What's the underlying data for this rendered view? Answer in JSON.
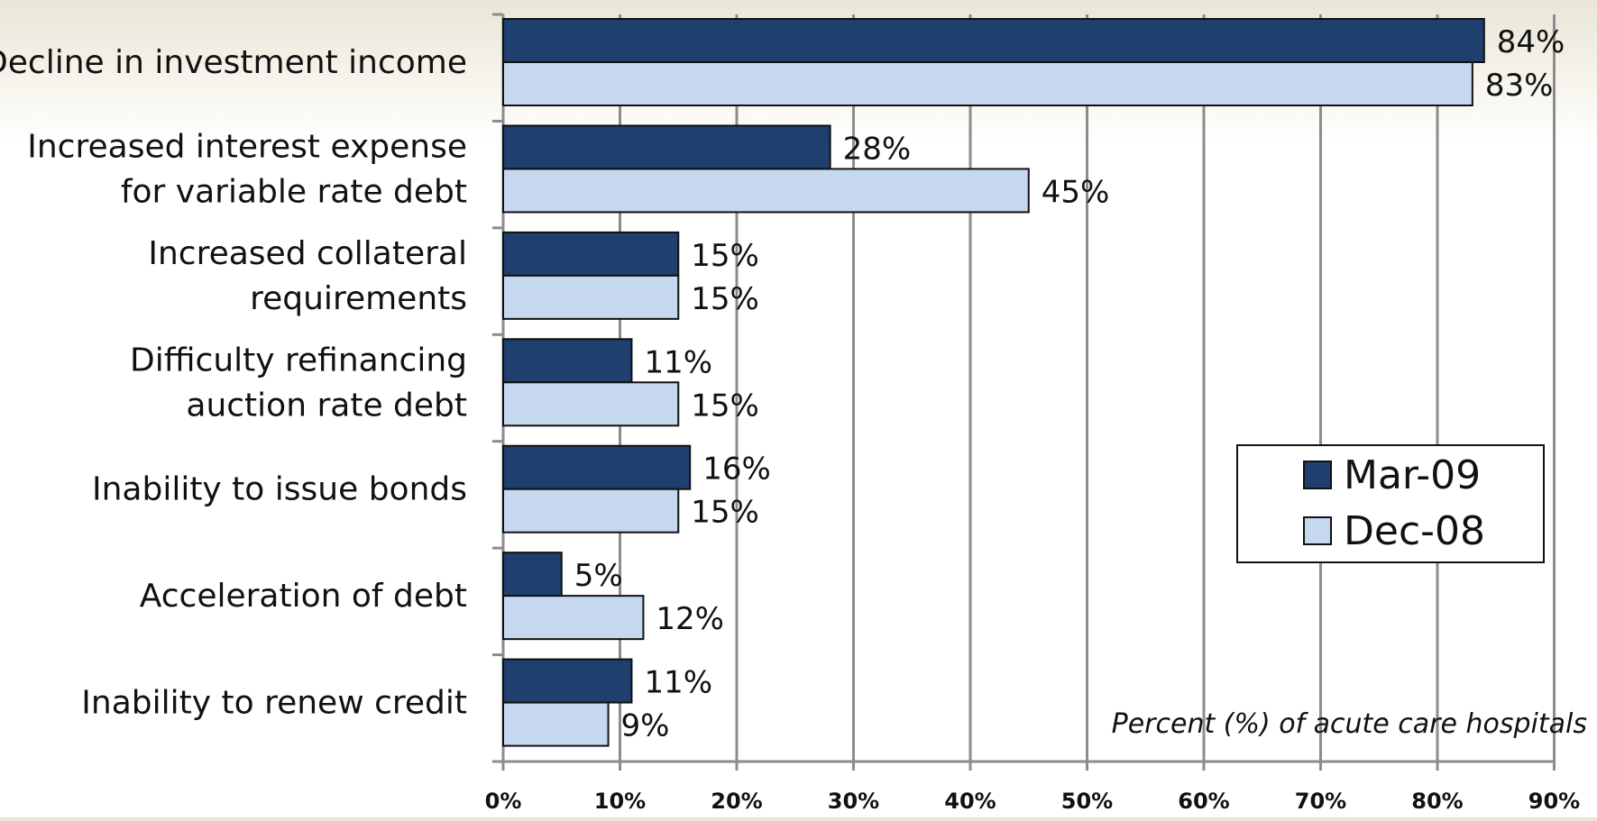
{
  "chart_data": {
    "type": "bar",
    "orientation": "horizontal",
    "categories": [
      [
        "Decline in investment income"
      ],
      [
        "Increased interest expense",
        "for variable rate debt"
      ],
      [
        "Increased collateral",
        "requirements"
      ],
      [
        "Difficulty refinancing",
        "auction rate debt"
      ],
      [
        "Inability to issue bonds"
      ],
      [
        "Acceleration of debt"
      ],
      [
        "Inability to renew credit"
      ]
    ],
    "series": [
      {
        "name": "Mar-09",
        "color": "#1f3f6e",
        "values": [
          84,
          28,
          15,
          11,
          16,
          5,
          11
        ],
        "labels": [
          "84%",
          "28%",
          "15%",
          "11%",
          "16%",
          "5%",
          "11%"
        ]
      },
      {
        "name": "Dec-08",
        "color": "#c6d7f0",
        "values": [
          83,
          45,
          15,
          15,
          15,
          12,
          9
        ],
        "labels": [
          "83%",
          "45%",
          "15%",
          "15%",
          "15%",
          "12%",
          "9%"
        ]
      }
    ],
    "xlim": [
      0,
      90
    ],
    "x_ticks": [
      "0%",
      "10%",
      "20%",
      "30%",
      "40%",
      "50%",
      "60%",
      "70%",
      "80%",
      "90%"
    ],
    "axis_note": "Percent (%) of acute care hospitals",
    "grid": true,
    "legend_position": "right"
  }
}
